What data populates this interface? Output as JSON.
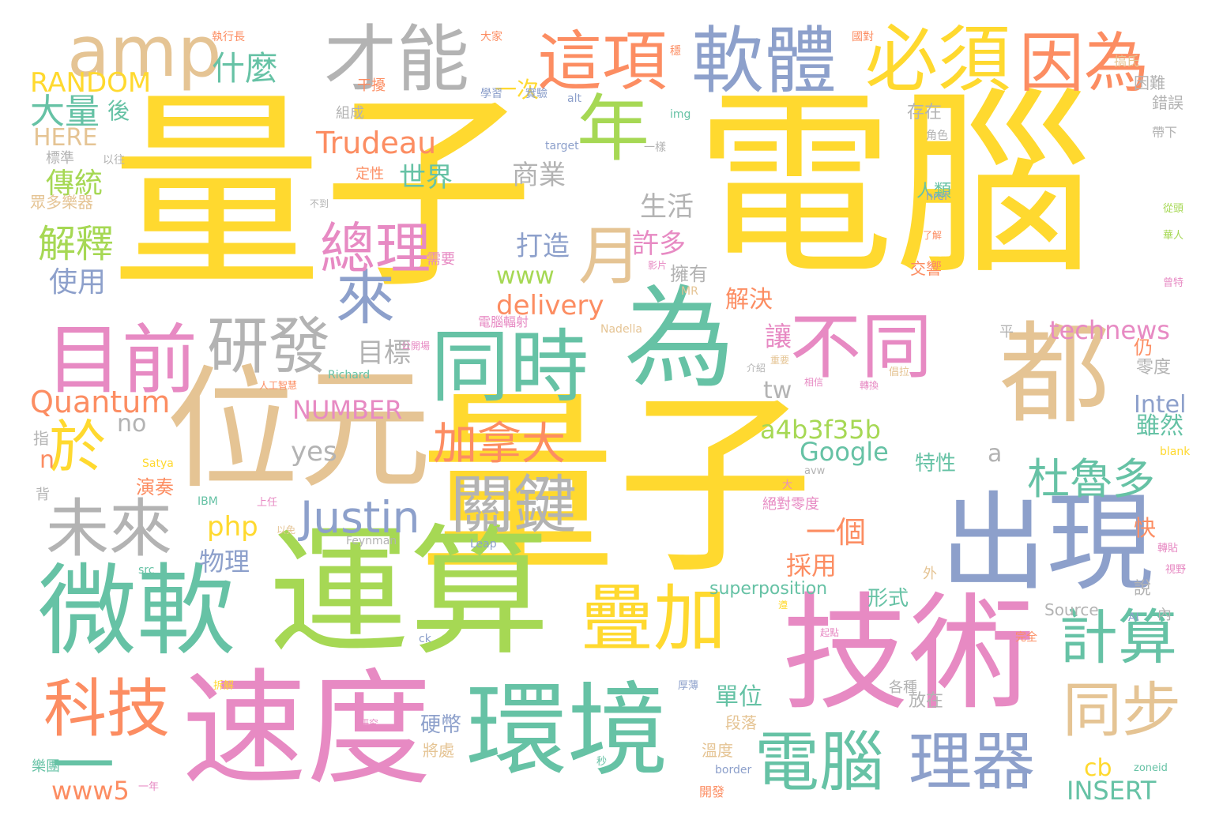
{
  "palette": {
    "yellow": "#FFD92F",
    "green": "#A6D854",
    "teal": "#66C2A5",
    "orange": "#FC8D62",
    "blue": "#8DA0CB",
    "pink": "#E78AC3",
    "tan": "#E5C494",
    "gray": "#B3B3B3"
  },
  "words": [
    {
      "text": "量子",
      "color": "yellow",
      "orient": "h"
    },
    {
      "text": "電腦",
      "color": "yellow",
      "orient": "h"
    },
    {
      "text": "量子",
      "color": "yellow",
      "orient": "h"
    },
    {
      "text": "位元",
      "color": "tan",
      "orient": "h"
    },
    {
      "text": "運算",
      "color": "green",
      "orient": "h"
    },
    {
      "text": "技術",
      "color": "pink",
      "orient": "h"
    },
    {
      "text": "微軟",
      "color": "teal",
      "orient": "h"
    },
    {
      "text": "速度",
      "color": "pink",
      "orient": "h"
    },
    {
      "text": "環境",
      "color": "teal",
      "orient": "h"
    },
    {
      "text": "出現",
      "color": "blue",
      "orient": "h"
    },
    {
      "text": "為",
      "color": "teal",
      "orient": "h"
    },
    {
      "text": "都",
      "color": "tan",
      "orient": "h"
    },
    {
      "text": "同時",
      "color": "teal",
      "orient": "h"
    },
    {
      "text": "才能",
      "color": "gray",
      "orient": "h"
    },
    {
      "text": "軟體",
      "color": "blue",
      "orient": "h"
    },
    {
      "text": "必須",
      "color": "yellow",
      "orient": "h"
    },
    {
      "text": "因為",
      "color": "orange",
      "orient": "h"
    },
    {
      "text": "這項",
      "color": "orange",
      "orient": "h"
    },
    {
      "text": "amp",
      "color": "tan",
      "orient": "h"
    },
    {
      "text": "年",
      "color": "green",
      "orient": "h"
    },
    {
      "text": "目前",
      "color": "pink",
      "orient": "h"
    },
    {
      "text": "研發",
      "color": "gray",
      "orient": "h"
    },
    {
      "text": "不同",
      "color": "pink",
      "orient": "h"
    },
    {
      "text": "疊加",
      "color": "yellow",
      "orient": "h"
    },
    {
      "text": "關鍵",
      "color": "gray",
      "orient": "h"
    },
    {
      "text": "未來",
      "color": "gray",
      "orient": "h"
    },
    {
      "text": "電腦",
      "color": "teal",
      "orient": "h"
    },
    {
      "text": "理器",
      "color": "blue",
      "orient": "h"
    },
    {
      "text": "科技",
      "color": "orange",
      "orient": "h"
    },
    {
      "text": "來",
      "color": "blue",
      "orient": "h"
    },
    {
      "text": "於",
      "color": "yellow",
      "orient": "h"
    },
    {
      "text": "Justin",
      "color": "blue",
      "orient": "h"
    },
    {
      "text": "計算",
      "color": "teal",
      "orient": "h"
    },
    {
      "text": "同步",
      "color": "tan",
      "orient": "h"
    },
    {
      "text": "月",
      "color": "tan",
      "orient": "h"
    },
    {
      "text": "總理",
      "color": "pink",
      "orient": "h"
    },
    {
      "text": "杜魯多",
      "color": "teal",
      "orient": "h"
    },
    {
      "text": "加拿大",
      "color": "orange",
      "orient": "h"
    },
    {
      "text": "Trudeau",
      "color": "orange",
      "orient": "h"
    },
    {
      "text": "Quantum",
      "color": "orange",
      "orient": "h"
    },
    {
      "text": "RANDOM",
      "color": "yellow",
      "orient": "h"
    },
    {
      "text": "HERE",
      "color": "tan",
      "orient": "h"
    },
    {
      "text": "大量",
      "color": "teal",
      "orient": "h"
    },
    {
      "text": "什麼",
      "color": "teal",
      "orient": "h"
    },
    {
      "text": "解釋",
      "color": "green",
      "orient": "h"
    },
    {
      "text": "傳統",
      "color": "green",
      "orient": "h"
    },
    {
      "text": "使用",
      "color": "blue",
      "orient": "h"
    },
    {
      "text": "NUMBER",
      "color": "pink",
      "orient": "h"
    },
    {
      "text": "a4b3f35b",
      "color": "green",
      "orient": "h"
    },
    {
      "text": "Google",
      "color": "teal",
      "orient": "h"
    },
    {
      "text": "technews",
      "color": "pink",
      "orient": "h"
    },
    {
      "text": "delivery",
      "color": "orange",
      "orient": "h"
    },
    {
      "text": "www",
      "color": "green",
      "orient": "h"
    },
    {
      "text": "www5",
      "color": "orange",
      "orient": "h"
    },
    {
      "text": "INSERT",
      "color": "teal",
      "orient": "h"
    },
    {
      "text": "superposition",
      "color": "teal",
      "orient": "h"
    },
    {
      "text": "Intel",
      "color": "blue",
      "orient": "h"
    },
    {
      "text": "php",
      "color": "yellow",
      "orient": "h"
    },
    {
      "text": "yes",
      "color": "gray",
      "orient": "h"
    },
    {
      "text": "tw",
      "color": "gray",
      "orient": "h"
    },
    {
      "text": "no",
      "color": "gray",
      "orient": "h"
    },
    {
      "text": "cb",
      "color": "yellow",
      "orient": "h"
    },
    {
      "text": "a",
      "color": "gray",
      "orient": "h"
    },
    {
      "text": "n",
      "color": "orange",
      "orient": "h"
    },
    {
      "text": "一",
      "color": "teal",
      "orient": "h"
    },
    {
      "text": "一個",
      "color": "orange",
      "orient": "h"
    },
    {
      "text": "世界",
      "color": "teal",
      "orient": "h"
    },
    {
      "text": "商業",
      "color": "gray",
      "orient": "h"
    },
    {
      "text": "生活",
      "color": "gray",
      "orient": "h"
    },
    {
      "text": "打造",
      "color": "blue",
      "orient": "h"
    },
    {
      "text": "許多",
      "color": "pink",
      "orient": "h"
    },
    {
      "text": "目標",
      "color": "gray",
      "orient": "h"
    },
    {
      "text": "讓",
      "color": "pink",
      "orient": "h"
    },
    {
      "text": "解決",
      "color": "orange",
      "orient": "h"
    },
    {
      "text": "擁有",
      "color": "gray",
      "orient": "h"
    },
    {
      "text": "雖然",
      "color": "teal",
      "orient": "h"
    },
    {
      "text": "特性",
      "color": "teal",
      "orient": "h"
    },
    {
      "text": "物理",
      "color": "blue",
      "orient": "h"
    },
    {
      "text": "採用",
      "color": "orange",
      "orient": "h"
    },
    {
      "text": "形式",
      "color": "teal",
      "orient": "h"
    },
    {
      "text": "單位",
      "color": "teal",
      "orient": "h"
    },
    {
      "text": "硬幣",
      "color": "blue",
      "orient": "h"
    },
    {
      "text": "演奏",
      "color": "orange",
      "orient": "h"
    },
    {
      "text": "後",
      "color": "teal",
      "orient": "h"
    },
    {
      "text": "一次",
      "color": "yellow",
      "orient": "h"
    },
    {
      "text": "存在",
      "color": "gray",
      "orient": "h"
    },
    {
      "text": "困難",
      "color": "gray",
      "orient": "h"
    },
    {
      "text": "錯誤",
      "color": "gray",
      "orient": "h"
    },
    {
      "text": "人類",
      "color": "teal",
      "orient": "h"
    },
    {
      "text": "交響",
      "color": "orange",
      "orient": "h"
    },
    {
      "text": "零度",
      "color": "gray",
      "orient": "h"
    },
    {
      "text": "仍",
      "color": "orange",
      "orient": "h"
    },
    {
      "text": "快",
      "color": "orange",
      "orient": "h"
    },
    {
      "text": "說",
      "color": "gray",
      "orient": "h"
    },
    {
      "text": "放在",
      "color": "gray",
      "orient": "h"
    },
    {
      "text": "各種",
      "color": "gray",
      "orient": "h"
    },
    {
      "text": "段落",
      "color": "tan",
      "orient": "h"
    },
    {
      "text": "溫度",
      "color": "tan",
      "orient": "h"
    },
    {
      "text": "將處",
      "color": "tan",
      "orient": "h"
    },
    {
      "text": "樂團",
      "color": "teal",
      "orient": "h"
    },
    {
      "text": "組成",
      "color": "gray",
      "orient": "h"
    },
    {
      "text": "定性",
      "color": "orange",
      "orient": "h"
    },
    {
      "text": "需要",
      "color": "pink",
      "orient": "h"
    },
    {
      "text": "標準",
      "color": "gray",
      "orient": "h"
    },
    {
      "text": "眾多樂器",
      "color": "tan",
      "orient": "h"
    },
    {
      "text": "指",
      "color": "gray",
      "orient": "h"
    },
    {
      "text": "背",
      "color": "gray",
      "orient": "h"
    },
    {
      "text": "Source",
      "color": "gray",
      "orient": "h"
    },
    {
      "text": "外",
      "color": "tan",
      "orient": "h"
    },
    {
      "text": "內",
      "color": "gray",
      "orient": "h"
    },
    {
      "text": "平",
      "color": "gray",
      "orient": "h"
    },
    {
      "text": "絕對零度",
      "color": "pink",
      "orient": "h"
    },
    {
      "text": "電腦輻射",
      "color": "pink",
      "orient": "h"
    },
    {
      "text": "Nadella",
      "color": "tan",
      "orient": "h"
    },
    {
      "text": "Richard",
      "color": "teal",
      "orient": "h"
    },
    {
      "text": "Feynman",
      "color": "gray",
      "orient": "h"
    },
    {
      "text": "Leap",
      "color": "blue",
      "orient": "h"
    },
    {
      "text": "Satya",
      "color": "yellow",
      "orient": "h"
    },
    {
      "text": "IBM",
      "color": "teal",
      "orient": "h"
    },
    {
      "text": "src",
      "color": "teal",
      "orient": "h"
    },
    {
      "text": "img",
      "color": "teal",
      "orient": "h"
    },
    {
      "text": "alt",
      "color": "blue",
      "orient": "h"
    },
    {
      "text": "href",
      "color": "blue",
      "orient": "h"
    },
    {
      "text": "target",
      "color": "blue",
      "orient": "h"
    },
    {
      "text": "border",
      "color": "blue",
      "orient": "h"
    },
    {
      "text": "zoneid",
      "color": "teal",
      "orient": "h"
    },
    {
      "text": "blank",
      "color": "yellow",
      "orient": "h"
    },
    {
      "text": "AI",
      "color": "blue",
      "orient": "h"
    },
    {
      "text": "ck",
      "color": "blue",
      "orient": "h"
    },
    {
      "text": "MR",
      "color": "tan",
      "orient": "h"
    },
    {
      "text": "avw",
      "color": "gray",
      "orient": "h"
    },
    {
      "text": "執行長",
      "color": "orange",
      "orient": "h"
    },
    {
      "text": "大家",
      "color": "orange",
      "orient": "h"
    },
    {
      "text": "國對",
      "color": "orange",
      "orient": "h"
    },
    {
      "text": "搞氏",
      "color": "tan",
      "orient": "h"
    },
    {
      "text": "穩",
      "color": "orange",
      "orient": "h"
    },
    {
      "text": "干擾",
      "color": "orange",
      "orient": "h"
    },
    {
      "text": "學習",
      "color": "blue",
      "orient": "h"
    },
    {
      "text": "實驗",
      "color": "blue",
      "orient": "h"
    },
    {
      "text": "角色",
      "color": "gray",
      "orient": "h"
    },
    {
      "text": "帶下",
      "color": "gray",
      "orient": "h"
    },
    {
      "text": "以往",
      "color": "gray",
      "orient": "h"
    },
    {
      "text": "一樣",
      "color": "gray",
      "orient": "h"
    },
    {
      "text": "不到",
      "color": "gray",
      "orient": "h"
    },
    {
      "text": "了解",
      "color": "orange",
      "orient": "h"
    },
    {
      "text": "從頭",
      "color": "green",
      "orient": "h"
    },
    {
      "text": "華人",
      "color": "green",
      "orient": "h"
    },
    {
      "text": "曾特",
      "color": "pink",
      "orient": "h"
    },
    {
      "text": "公開場",
      "color": "pink",
      "orient": "h"
    },
    {
      "text": "人工智慧",
      "color": "orange",
      "orient": "h"
    },
    {
      "text": "倡拉",
      "color": "tan",
      "orient": "h"
    },
    {
      "text": "轉貼",
      "color": "pink",
      "orient": "h"
    },
    {
      "text": "視野",
      "color": "pink",
      "orient": "h"
    },
    {
      "text": "秒",
      "color": "teal",
      "orient": "h"
    },
    {
      "text": "一年",
      "color": "pink",
      "orient": "h"
    },
    {
      "text": "開發",
      "color": "orange",
      "orient": "h"
    },
    {
      "text": "完全",
      "color": "orange",
      "orient": "h"
    },
    {
      "text": "厚薄",
      "color": "blue",
      "orient": "h"
    },
    {
      "text": "拆解",
      "color": "yellow",
      "orient": "h"
    },
    {
      "text": "研究",
      "color": "pink",
      "orient": "h"
    },
    {
      "text": "遵",
      "color": "yellow",
      "orient": "h"
    },
    {
      "text": "起點",
      "color": "pink",
      "orient": "h"
    },
    {
      "text": "介紹",
      "color": "gray",
      "orient": "h"
    },
    {
      "text": "上任",
      "color": "pink",
      "orient": "h"
    },
    {
      "text": "以免",
      "color": "tan",
      "orient": "h"
    },
    {
      "text": "重要",
      "color": "tan",
      "orient": "h"
    },
    {
      "text": "相信",
      "color": "pink",
      "orient": "h"
    },
    {
      "text": "轉換",
      "color": "pink",
      "orient": "h"
    },
    {
      "text": "影片",
      "color": "pink",
      "orient": "h"
    },
    {
      "text": "大",
      "color": "pink",
      "orient": "h"
    }
  ]
}
